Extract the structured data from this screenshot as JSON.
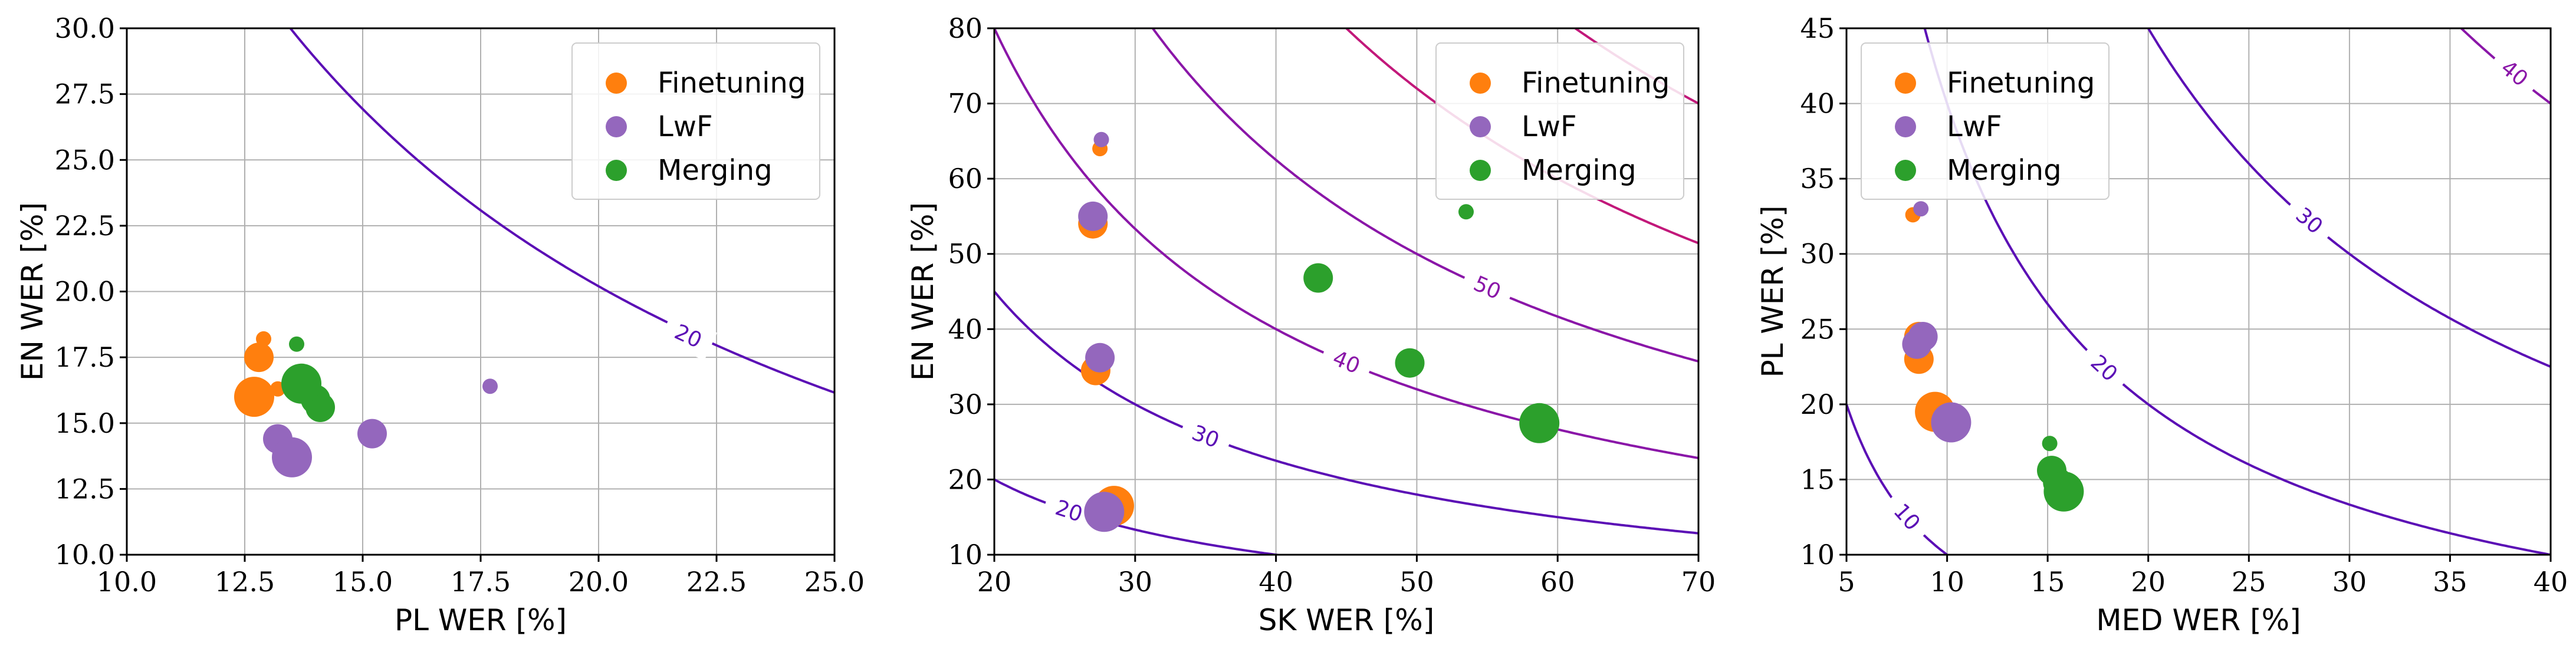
{
  "colors": {
    "finetuning": "#ff7f0e",
    "lwf": "#9467bd",
    "merging": "#2ca02c",
    "contour_low": "#5b0fb5",
    "contour_high": "#c2187a",
    "grid": "#b0b0b0"
  },
  "chart_data": [
    {
      "type": "scatter",
      "title": "",
      "xlabel": "PL WER [%]",
      "ylabel": "EN WER [%]",
      "xlim": [
        10.0,
        25.0
      ],
      "ylim": [
        10.0,
        30.0
      ],
      "xticks": [
        10.0,
        12.5,
        15.0,
        17.5,
        20.0,
        22.5,
        25.0
      ],
      "yticks": [
        10.0,
        12.5,
        15.0,
        17.5,
        20.0,
        22.5,
        25.0,
        27.5,
        30.0
      ],
      "xtick_labels": [
        "10.0",
        "12.5",
        "15.0",
        "17.5",
        "20.0",
        "22.5",
        "25.0"
      ],
      "ytick_labels": [
        "10.0",
        "12.5",
        "15.0",
        "17.5",
        "20.0",
        "22.5",
        "25.0",
        "27.5",
        "30.0"
      ],
      "grid": true,
      "legend_position": "top-right",
      "contours": [
        {
          "level": 20,
          "label": "20",
          "product": 404,
          "label_at": [
            21.9,
            18.3
          ]
        }
      ],
      "series": [
        {
          "name": "Finetuning",
          "key": "finetuning",
          "points": [
            {
              "x": 12.9,
              "y": 18.2,
              "size": 1
            },
            {
              "x": 12.8,
              "y": 17.5,
              "size": 2
            },
            {
              "x": 13.2,
              "y": 16.3,
              "size": 1
            },
            {
              "x": 12.7,
              "y": 16.0,
              "size": 3
            }
          ]
        },
        {
          "name": "LwF",
          "key": "lwf",
          "points": [
            {
              "x": 17.7,
              "y": 16.4,
              "size": 1
            },
            {
              "x": 15.2,
              "y": 14.6,
              "size": 2
            },
            {
              "x": 13.2,
              "y": 14.4,
              "size": 2
            },
            {
              "x": 13.5,
              "y": 13.7,
              "size": 3
            }
          ]
        },
        {
          "name": "Merging",
          "key": "merging",
          "points": [
            {
              "x": 13.6,
              "y": 18.0,
              "size": 1
            },
            {
              "x": 14.1,
              "y": 15.6,
              "size": 2
            },
            {
              "x": 14.0,
              "y": 15.9,
              "size": 2
            },
            {
              "x": 13.7,
              "y": 16.5,
              "size": 3
            }
          ]
        }
      ]
    },
    {
      "type": "scatter",
      "title": "",
      "xlabel": "SK WER [%]",
      "ylabel": "EN WER [%]",
      "xlim": [
        20,
        70
      ],
      "ylim": [
        10,
        80
      ],
      "xticks": [
        20,
        30,
        40,
        50,
        60,
        70
      ],
      "yticks": [
        10,
        20,
        30,
        40,
        50,
        60,
        70,
        80
      ],
      "xtick_labels": [
        "20",
        "30",
        "40",
        "50",
        "60",
        "70"
      ],
      "ytick_labels": [
        "10",
        "20",
        "30",
        "40",
        "50",
        "60",
        "70",
        "80"
      ],
      "grid": true,
      "legend_position": "top-right",
      "contours": [
        {
          "level": 20,
          "label": "20",
          "product": 400,
          "label_at": [
            25.3,
            15.8
          ]
        },
        {
          "level": 30,
          "label": "30",
          "product": 900,
          "label_at": [
            35.0,
            25.7
          ]
        },
        {
          "level": 40,
          "label": "40",
          "product": 1600,
          "label_at": [
            45.0,
            35.6
          ]
        },
        {
          "level": 50,
          "label": "50",
          "product": 2500,
          "label_at": [
            55.0,
            45.5
          ]
        },
        {
          "level": 60,
          "label": "",
          "product": 3600,
          "label_at": null
        },
        {
          "level": 70,
          "label": "",
          "product": 4900,
          "label_at": null
        }
      ],
      "series": [
        {
          "name": "Finetuning",
          "key": "finetuning",
          "points": [
            {
              "x": 27.5,
              "y": 64.0,
              "size": 1
            },
            {
              "x": 27.0,
              "y": 54.0,
              "size": 2
            },
            {
              "x": 27.2,
              "y": 34.5,
              "size": 2
            },
            {
              "x": 28.5,
              "y": 16.5,
              "size": 3
            }
          ]
        },
        {
          "name": "LwF",
          "key": "lwf",
          "points": [
            {
              "x": 27.6,
              "y": 65.2,
              "size": 1
            },
            {
              "x": 27.0,
              "y": 55.0,
              "size": 2
            },
            {
              "x": 27.5,
              "y": 36.2,
              "size": 2
            },
            {
              "x": 27.8,
              "y": 15.7,
              "size": 3
            }
          ]
        },
        {
          "name": "Merging",
          "key": "merging",
          "points": [
            {
              "x": 53.5,
              "y": 55.6,
              "size": 1
            },
            {
              "x": 43.0,
              "y": 46.8,
              "size": 2
            },
            {
              "x": 49.5,
              "y": 35.5,
              "size": 2
            },
            {
              "x": 58.7,
              "y": 27.5,
              "size": 3
            }
          ]
        }
      ]
    },
    {
      "type": "scatter",
      "title": "",
      "xlabel": "MED WER [%]",
      "ylabel": "PL WER [%]",
      "xlim": [
        5,
        40
      ],
      "ylim": [
        10,
        45
      ],
      "xticks": [
        5,
        10,
        15,
        20,
        25,
        30,
        35,
        40
      ],
      "yticks": [
        10,
        15,
        20,
        25,
        30,
        35,
        40,
        45
      ],
      "xtick_labels": [
        "5",
        "10",
        "15",
        "20",
        "25",
        "30",
        "35",
        "40"
      ],
      "ytick_labels": [
        "10",
        "15",
        "20",
        "25",
        "30",
        "35",
        "40",
        "45"
      ],
      "grid": true,
      "legend_position": "top-left",
      "contours": [
        {
          "level": 10,
          "label": "10",
          "product": 100,
          "label_at": [
            8.0,
            12.5
          ]
        },
        {
          "level": 20,
          "label": "20",
          "product": 400,
          "label_at": [
            17.8,
            22.4
          ]
        },
        {
          "level": 30,
          "label": "30",
          "product": 900,
          "label_at": [
            28.0,
            32.2
          ]
        },
        {
          "level": 40,
          "label": "40",
          "product": 1600,
          "label_at": [
            38.2,
            42.0
          ]
        }
      ],
      "series": [
        {
          "name": "Finetuning",
          "key": "finetuning",
          "points": [
            {
              "x": 8.3,
              "y": 32.6,
              "size": 1
            },
            {
              "x": 8.6,
              "y": 24.5,
              "size": 2
            },
            {
              "x": 8.6,
              "y": 23.0,
              "size": 2
            },
            {
              "x": 9.4,
              "y": 19.5,
              "size": 3
            }
          ]
        },
        {
          "name": "LwF",
          "key": "lwf",
          "points": [
            {
              "x": 8.7,
              "y": 33.0,
              "size": 1
            },
            {
              "x": 8.8,
              "y": 24.5,
              "size": 2
            },
            {
              "x": 8.5,
              "y": 24.0,
              "size": 2
            },
            {
              "x": 10.2,
              "y": 18.8,
              "size": 3
            }
          ]
        },
        {
          "name": "Merging",
          "key": "merging",
          "points": [
            {
              "x": 15.1,
              "y": 17.4,
              "size": 1
            },
            {
              "x": 15.2,
              "y": 15.6,
              "size": 2
            },
            {
              "x": 15.5,
              "y": 14.8,
              "size": 2
            },
            {
              "x": 15.8,
              "y": 14.2,
              "size": 3
            }
          ]
        }
      ]
    }
  ]
}
